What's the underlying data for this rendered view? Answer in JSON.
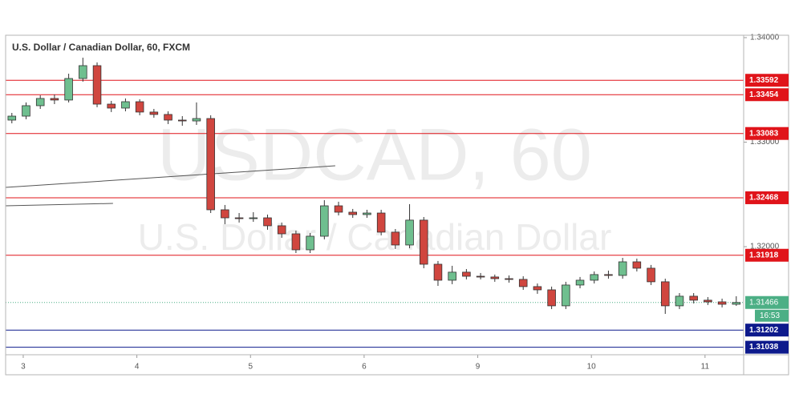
{
  "chart_data": {
    "type": "candlestick",
    "title": "U.S. Dollar / Canadian Dollar, 60, FXCM",
    "watermark": {
      "symbol": "USDCAD, 60",
      "name": "U.S. Dollar / Canadian Dollar"
    },
    "x": [
      -0.1,
      0.025,
      0.15,
      0.275,
      0.4,
      0.525,
      0.65,
      0.775,
      0.9,
      1.025,
      1.15,
      1.275,
      1.4,
      1.525,
      1.65,
      1.775,
      1.9,
      2.025,
      2.15,
      2.275,
      2.4,
      2.525,
      2.65,
      2.775,
      2.9,
      3.025,
      3.15,
      3.275,
      3.4,
      3.525,
      3.65,
      3.775,
      3.9,
      4.025,
      4.15,
      4.275,
      4.4,
      4.525,
      4.65,
      4.775,
      4.9,
      5.025,
      5.15,
      5.275,
      5.4,
      5.525,
      5.65,
      5.775,
      5.9,
      6.025,
      6.15,
      6.275
    ],
    "open": [
      1.33211,
      1.33249,
      1.33349,
      1.33418,
      1.33403,
      1.33609,
      1.33732,
      1.33364,
      1.33326,
      1.33387,
      1.33288,
      1.33265,
      1.33211,
      1.33203,
      1.33226,
      1.32353,
      1.32276,
      1.32269,
      1.32276,
      1.322,
      1.32123,
      1.3197,
      1.321,
      1.32391,
      1.3233,
      1.32307,
      1.32322,
      1.32139,
      1.32016,
      1.32254,
      1.31832,
      1.31679,
      1.31756,
      1.31717,
      1.3171,
      1.31694,
      1.31687,
      1.31618,
      1.31587,
      1.31434,
      1.31633,
      1.31679,
      1.31733,
      1.31725,
      1.31855,
      1.31794,
      1.31664,
      1.31434,
      1.31526,
      1.31488,
      1.31472,
      1.31449
    ],
    "high": [
      1.3328,
      1.3338,
      1.33448,
      1.33456,
      1.33655,
      1.33808,
      1.33763,
      1.33395,
      1.33418,
      1.3341,
      1.33318,
      1.33295,
      1.33249,
      1.3338,
      1.33257,
      1.32399,
      1.32322,
      1.3233,
      1.32307,
      1.32231,
      1.32154,
      1.32131,
      1.32445,
      1.3243,
      1.32361,
      1.32353,
      1.32353,
      1.32169,
      1.32407,
      1.32284,
      1.31863,
      1.31817,
      1.31786,
      1.31748,
      1.31733,
      1.31725,
      1.31717,
      1.31648,
      1.31618,
      1.31664,
      1.3171,
      1.31763,
      1.31771,
      1.31893,
      1.31886,
      1.31825,
      1.31694,
      1.31556,
      1.31556,
      1.31518,
      1.31503,
      1.31526
    ],
    "low": [
      1.3318,
      1.33219,
      1.33318,
      1.33364,
      1.3338,
      1.33579,
      1.33334,
      1.33288,
      1.33295,
      1.33257,
      1.33234,
      1.33173,
      1.33157,
      1.33165,
      1.32322,
      1.32215,
      1.32231,
      1.32238,
      1.32162,
      1.32085,
      1.31939,
      1.31939,
      1.3207,
      1.32299,
      1.32276,
      1.32276,
      1.32108,
      1.31978,
      1.31985,
      1.31794,
      1.31625,
      1.31641,
      1.31687,
      1.31687,
      1.31664,
      1.31656,
      1.31587,
      1.31549,
      1.31403,
      1.31403,
      1.31602,
      1.31648,
      1.31694,
      1.31694,
      1.31763,
      1.31633,
      1.31357,
      1.31403,
      1.31457,
      1.31442,
      1.31419,
      1.31434
    ],
    "close": [
      1.33249,
      1.33349,
      1.33418,
      1.33403,
      1.33609,
      1.33732,
      1.33364,
      1.33326,
      1.33387,
      1.33288,
      1.33265,
      1.33211,
      1.33203,
      1.33226,
      1.32353,
      1.32276,
      1.32269,
      1.32276,
      1.322,
      1.32123,
      1.3197,
      1.321,
      1.32391,
      1.3233,
      1.32307,
      1.32322,
      1.32139,
      1.32016,
      1.32254,
      1.31832,
      1.31679,
      1.31756,
      1.31717,
      1.3171,
      1.31694,
      1.31687,
      1.31618,
      1.31587,
      1.31434,
      1.31633,
      1.31679,
      1.31733,
      1.31725,
      1.31855,
      1.31794,
      1.31664,
      1.31434,
      1.31526,
      1.31488,
      1.31472,
      1.31449,
      1.31466
    ],
    "up_color": "#6fbf8f",
    "down_color": "#d0463f",
    "wick_color": "#333333",
    "xlim": [
      -0.155,
      6.34
    ],
    "ylim": [
      1.30966,
      1.34023
    ],
    "xticks": [
      {
        "value": 0,
        "label": "3"
      },
      {
        "value": 1,
        "label": "4"
      },
      {
        "value": 2,
        "label": "5"
      },
      {
        "value": 3,
        "label": "6"
      },
      {
        "value": 4,
        "label": "9"
      },
      {
        "value": 5,
        "label": "10"
      },
      {
        "value": 6,
        "label": "11"
      }
    ],
    "yticks": [
      {
        "value": 1.34,
        "label": "1.34000"
      },
      {
        "value": 1.33,
        "label": "1.33000"
      },
      {
        "value": 1.32,
        "label": "1.32000"
      }
    ],
    "levels": [
      {
        "value": 1.33592,
        "color": "#e0141a"
      },
      {
        "value": 1.33454,
        "color": "#e0141a"
      },
      {
        "value": 1.33083,
        "color": "#e0141a"
      },
      {
        "value": 1.32468,
        "color": "#e0141a"
      },
      {
        "value": 1.31918,
        "color": "#e0141a"
      },
      {
        "value": 1.31202,
        "color": "#0d1a8c"
      },
      {
        "value": 1.31038,
        "color": "#0d1a8c"
      }
    ],
    "current_price": {
      "value": 1.31466,
      "countdown": "16:53",
      "color": "#4caf85"
    },
    "trendlines": [
      {
        "x": [
          -0.155,
          2.746
        ],
        "y": [
          1.32567,
          1.32774
        ]
      },
      {
        "x": [
          -0.155,
          0.79
        ],
        "y": [
          1.32391,
          1.32414
        ]
      }
    ]
  }
}
